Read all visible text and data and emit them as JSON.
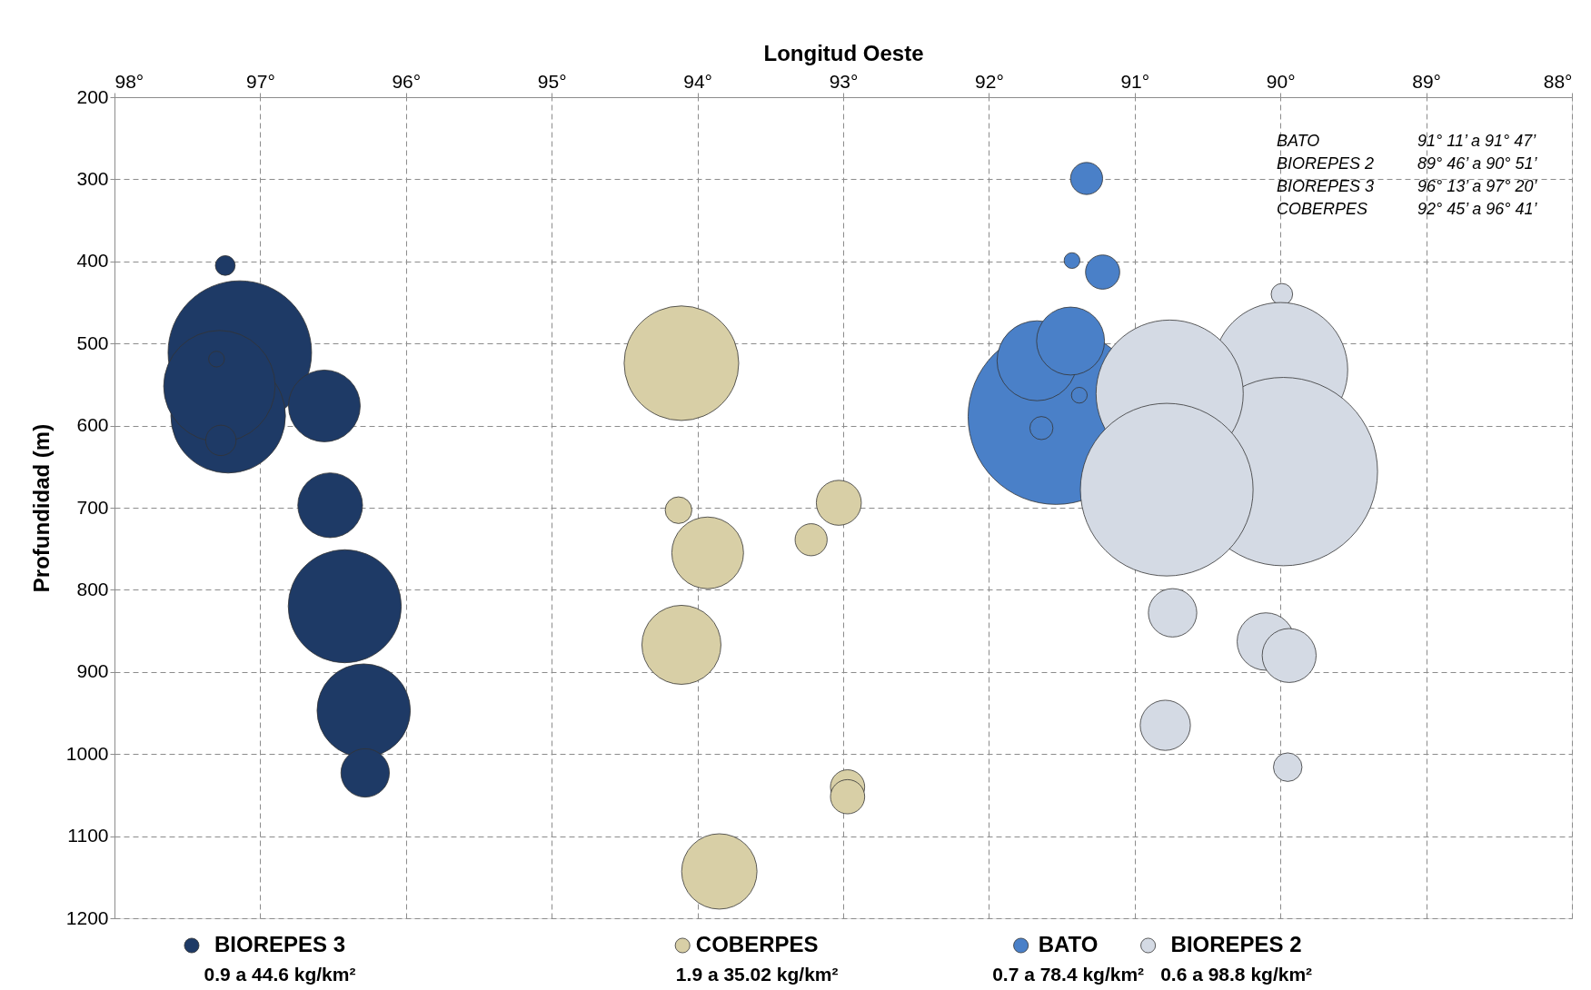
{
  "chart_data": {
    "type": "bubble",
    "xlabel": "Longitud Oeste",
    "ylabel": "Profundidad (m)",
    "xlim": [
      98,
      88
    ],
    "ylim": [
      1200,
      200
    ],
    "xticks": [
      {
        "value": 98,
        "label": "98°"
      },
      {
        "value": 97,
        "label": "97°"
      },
      {
        "value": 96,
        "label": "96°"
      },
      {
        "value": 95,
        "label": "95°"
      },
      {
        "value": 94,
        "label": "94°"
      },
      {
        "value": 93,
        "label": "93°"
      },
      {
        "value": 92,
        "label": "92°"
      },
      {
        "value": 91,
        "label": "91°"
      },
      {
        "value": 90,
        "label": "90°"
      },
      {
        "value": 89,
        "label": "89°"
      },
      {
        "value": 88,
        "label": "88°"
      }
    ],
    "yticks": [
      200,
      300,
      400,
      500,
      600,
      700,
      800,
      900,
      1000,
      1100,
      1200
    ],
    "grid": true,
    "legend": "bottom",
    "series": [
      {
        "name": "BIOREPES 3",
        "color": "#1e3a66",
        "x": [
          97.24,
          97.14,
          97.22,
          97.28,
          97.3,
          97.27,
          96.56,
          96.52,
          96.42,
          96.29,
          96.28
        ],
        "values": [
          405,
          511,
          588,
          552,
          519,
          618,
          576,
          697,
          820,
          947,
          1023
        ],
        "sizes": [
          0.011,
          0.58,
          0.37,
          0.35,
          0.007,
          0.026,
          0.145,
          0.118,
          0.36,
          0.245,
          0.066
        ]
      },
      {
        "name": "COBERPES",
        "color": "#d8cfa6",
        "x": [
          94.11,
          94.13,
          93.93,
          94.11,
          93.22,
          93.03,
          92.97,
          92.97,
          93.85
        ],
        "values": [
          524,
          703,
          755,
          867,
          739,
          694,
          1040,
          1052,
          1143
        ],
        "sizes": [
          0.37,
          0.02,
          0.145,
          0.176,
          0.029,
          0.057,
          0.033,
          0.033,
          0.16
        ]
      },
      {
        "name": "BATO",
        "color": "#4a80c8",
        "x": [
          91.33,
          91.43,
          91.22,
          91.54,
          91.67,
          91.44,
          91.64,
          91.38
        ],
        "values": [
          299,
          399,
          413,
          589,
          521,
          497,
          603,
          563
        ],
        "sizes": [
          0.029,
          0.007,
          0.033,
          0.87,
          0.18,
          0.13,
          0.015,
          0.007
        ]
      },
      {
        "name": "BIOREPES 2",
        "color": "#d4dae4",
        "x": [
          89.99,
          90.0,
          89.98,
          90.76,
          90.78,
          90.74,
          90.1,
          89.94,
          90.79,
          89.95
        ],
        "values": [
          440,
          532,
          656,
          561,
          678,
          828,
          863,
          880,
          965,
          1016
        ],
        "sizes": [
          0.013,
          0.51,
          1,
          0.61,
          0.84,
          0.066,
          0.093,
          0.082,
          0.071,
          0.023
        ]
      }
    ],
    "annotations": [
      "0.9 a 44.6 kg/km²",
      "1.9 a 35.02 kg/km²",
      "0.7 a 78.4 kg/km²",
      "0.6 a 98.8 kg/km²",
      "BATO",
      "91° 11’ a 91° 47’",
      "BIOREPES 2",
      "89° 46’ a 90° 51’",
      "BIOREPES 3",
      "96° 13’ a 97° 20’",
      "COBERPES",
      "92° 45’ a 96° 41’"
    ]
  }
}
